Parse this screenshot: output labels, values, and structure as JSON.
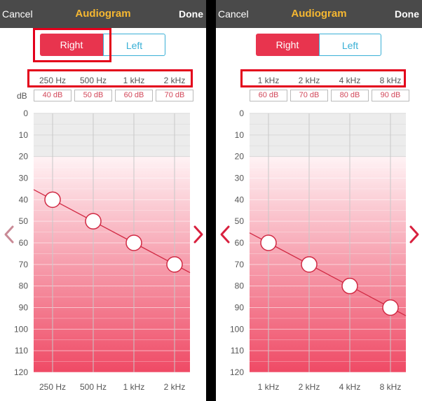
{
  "colors": {
    "accent": "#e8344e",
    "header_bg": "#4a4a4a",
    "title": "#f5b731",
    "left_tab": "#3ab0d6"
  },
  "header": {
    "cancel_label": "Cancel",
    "title": "Audiogram",
    "done_label": "Done"
  },
  "tabs": {
    "right_label": "Right",
    "left_label": "Left",
    "selected": "Right"
  },
  "db_axis_label": "dB",
  "y_ticks": [
    "0",
    "10",
    "20",
    "30",
    "40",
    "50",
    "60",
    "70",
    "80",
    "90",
    "100",
    "110",
    "120"
  ],
  "panels": [
    {
      "frequencies": [
        "250 Hz",
        "500 Hz",
        "1 kHz",
        "2 kHz"
      ],
      "db_values": [
        "40 dB",
        "50 dB",
        "60 dB",
        "70 dB"
      ],
      "points_db": [
        40,
        50,
        60,
        70
      ],
      "left_arrow_icon": "chevron-left-icon",
      "right_arrow_icon": "chevron-right-icon"
    },
    {
      "frequencies": [
        "1 kHz",
        "2 kHz",
        "4 kHz",
        "8 kHz"
      ],
      "db_values": [
        "60 dB",
        "70 dB",
        "80 dB",
        "90 dB"
      ],
      "points_db": [
        60,
        70,
        80,
        90
      ],
      "left_arrow_icon": "chevron-left-icon",
      "right_arrow_icon": "chevron-right-icon"
    }
  ],
  "chart_data": [
    {
      "type": "line",
      "x": [
        "250 Hz",
        "500 Hz",
        "1 kHz",
        "2 kHz"
      ],
      "y": [
        40,
        50,
        60,
        70
      ],
      "ylabel": "dB",
      "ylim": [
        0,
        120
      ],
      "y_inverted": true
    },
    {
      "type": "line",
      "x": [
        "1 kHz",
        "2 kHz",
        "4 kHz",
        "8 kHz"
      ],
      "y": [
        60,
        70,
        80,
        90
      ],
      "ylabel": "dB",
      "ylim": [
        0,
        120
      ],
      "y_inverted": true
    }
  ]
}
